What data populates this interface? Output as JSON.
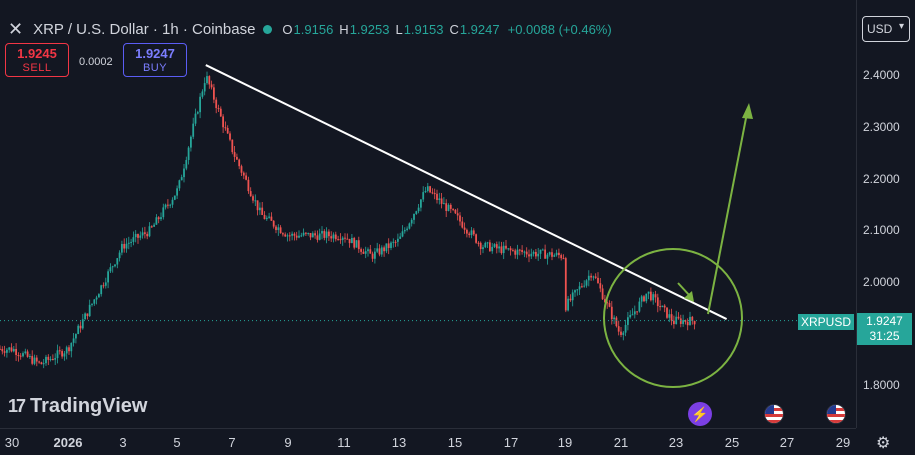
{
  "header": {
    "close_glyph": "✕",
    "symbol": "XRP / U.S. Dollar · 1h · Coinbase",
    "ohlc": [
      {
        "key": "O",
        "value": "1.9156"
      },
      {
        "key": "H",
        "value": "1.9253"
      },
      {
        "key": "L",
        "value": "1.9153"
      },
      {
        "key": "C",
        "value": "1.9247"
      }
    ],
    "change": "+0.0088 (+0.46%)",
    "status_color": "#26a69a"
  },
  "trade": {
    "sell_price": "1.9245",
    "sell_label": "SELL",
    "buy_price": "1.9247",
    "buy_label": "BUY",
    "spread": "0.0002"
  },
  "currency": {
    "label": "USD",
    "chevron": "▾"
  },
  "y_axis": {
    "ticks": [
      "2.4000",
      "2.3000",
      "2.2000",
      "2.1000",
      "2.0000",
      "1.8000"
    ]
  },
  "x_axis": {
    "ticks": [
      "30",
      "2026",
      "3",
      "5",
      "7",
      "9",
      "11",
      "13",
      "15",
      "17",
      "19",
      "21",
      "23",
      "25",
      "27",
      "29"
    ]
  },
  "price_label": {
    "symbol": "XRPUSD",
    "price": "1.9247",
    "countdown": "31:25"
  },
  "branding": {
    "name": "TradingView",
    "mark": "17"
  },
  "icons": {
    "bolt": "⚡",
    "gear": "⚙"
  },
  "colors": {
    "up": "#26a69a",
    "down": "#ef5350",
    "annotation": "#7cb342",
    "trendline": "#ffffff",
    "background": "#131722"
  },
  "chart_data": {
    "type": "candlestick",
    "title": "XRP / U.S. Dollar · 1h · Coinbase",
    "ylim": [
      1.75,
      2.45
    ],
    "key_points": [
      {
        "date": "Dec 29",
        "price": 1.87
      },
      {
        "date": "Dec 30",
        "price": 1.87
      },
      {
        "date": "Dec 31",
        "price": 1.84
      },
      {
        "date": "Jan 1",
        "price": 1.87
      },
      {
        "date": "Jan 2",
        "price": 1.97
      },
      {
        "date": "Jan 3",
        "price": 2.07
      },
      {
        "date": "Jan 4",
        "price": 2.1
      },
      {
        "date": "Jan 5",
        "price": 2.18
      },
      {
        "date": "Jan 6",
        "price": 2.4
      },
      {
        "date": "Jan 7",
        "price": 2.25
      },
      {
        "date": "Jan 8",
        "price": 2.13
      },
      {
        "date": "Jan 9",
        "price": 2.09
      },
      {
        "date": "Jan 11",
        "price": 2.09
      },
      {
        "date": "Jan 12",
        "price": 2.05
      },
      {
        "date": "Jan 13",
        "price": 2.08
      },
      {
        "date": "Jan 14",
        "price": 2.18
      },
      {
        "date": "Jan 15",
        "price": 2.13
      },
      {
        "date": "Jan 16",
        "price": 2.07
      },
      {
        "date": "Jan 17",
        "price": 2.06
      },
      {
        "date": "Jan 19",
        "price": 2.05
      },
      {
        "date": "Jan 19",
        "price": 1.95
      },
      {
        "date": "Jan 20",
        "price": 2.02
      },
      {
        "date": "Jan 21",
        "price": 1.9
      },
      {
        "date": "Jan 22",
        "price": 1.98
      },
      {
        "date": "Jan 23",
        "price": 1.92
      },
      {
        "date": "Jan 23",
        "price": 1.9247
      }
    ],
    "trendline": {
      "from": {
        "date": "Jan 6",
        "price": 2.42
      },
      "to": {
        "date": "Jan 24",
        "price": 1.92
      }
    },
    "last_price": 1.9247
  }
}
